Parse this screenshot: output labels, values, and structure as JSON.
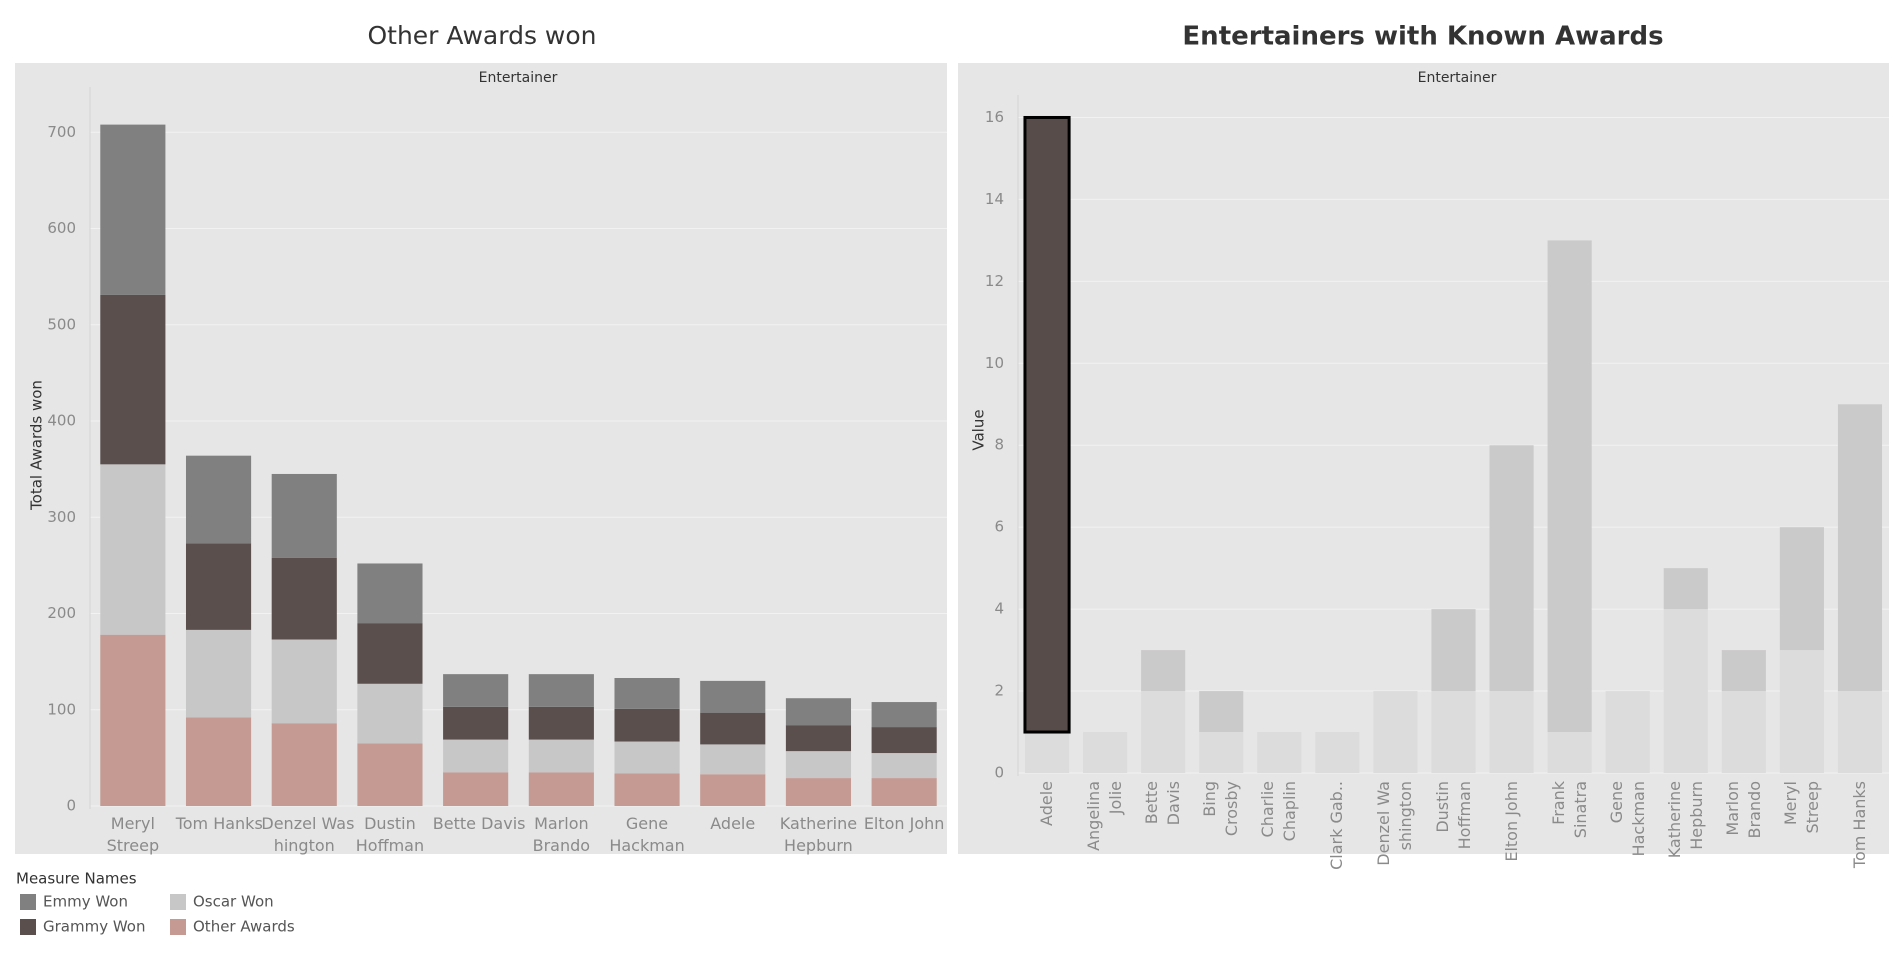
{
  "chart_data": [
    {
      "type": "stacked_bar",
      "title": "Other Awards won",
      "header": "Entertainer",
      "y_label": "Total Awards won",
      "categories": [
        "Meryl\nStreep",
        "Tom Hanks",
        "Denzel Was\nhington",
        "Dustin\nHoffman",
        "Bette Davis",
        "Marlon\nBrando",
        "Gene\nHackman",
        "Adele",
        "Katherine\nHepburn",
        "Elton John"
      ],
      "series": [
        {
          "name": "Other Awards",
          "color": "#c49a92",
          "values": [
            178,
            92,
            86,
            65,
            35,
            35,
            34,
            33,
            29,
            29
          ]
        },
        {
          "name": "Oscar Won",
          "color": "#c7c7c7",
          "values": [
            177,
            91,
            87,
            62,
            34,
            34,
            33,
            31,
            28,
            26
          ]
        },
        {
          "name": "Grammy Won",
          "color": "#5a4f4c",
          "values": [
            176,
            90,
            85,
            63,
            34,
            34,
            34,
            33,
            27,
            27
          ]
        },
        {
          "name": "Emmy Won",
          "color": "#808080",
          "values": [
            177,
            91,
            87,
            62,
            34,
            34,
            32,
            33,
            28,
            26
          ]
        }
      ],
      "ylim": [
        0,
        745
      ],
      "yticks": [
        0,
        100,
        200,
        300,
        400,
        500,
        600,
        700
      ],
      "grid": true,
      "legend": {
        "title": "Measure Names",
        "position": "bottom-left"
      }
    },
    {
      "type": "stacked_bar",
      "title": "Entertainers with Known Awards",
      "header": "Entertainer",
      "y_label": "Value",
      "categories": [
        "Adele",
        "Angelina\nJolie",
        "Bette\nDavis",
        "Bing\nCrosby",
        "Charlie\nChaplin",
        "Clark Gab..",
        "Denzel Wa\nshington",
        "Dustin\nHoffman",
        "Elton John",
        "Frank\nSinatra",
        "Gene\nHackman",
        "Katherine\nHepburn",
        "Marlon\nBrando",
        "Meryl\nStreep",
        "Tom Hanks"
      ],
      "series": [
        {
          "color": "#dcdcdc",
          "values": [
            1,
            1,
            2,
            1,
            1,
            1,
            2,
            2,
            2,
            1,
            2,
            4,
            2,
            3,
            2
          ]
        },
        {
          "color": "#cbcaca",
          "values": [
            15,
            0,
            1,
            1,
            0,
            0,
            0,
            2,
            6,
            12,
            0,
            1,
            1,
            3,
            7
          ]
        }
      ],
      "selected": 0,
      "selected_color": "#574c4a",
      "ylim": [
        0,
        16.5
      ],
      "yticks": [
        0,
        2,
        4,
        6,
        8,
        10,
        12,
        14,
        16
      ],
      "grid": true,
      "label_rotation": -90
    }
  ]
}
